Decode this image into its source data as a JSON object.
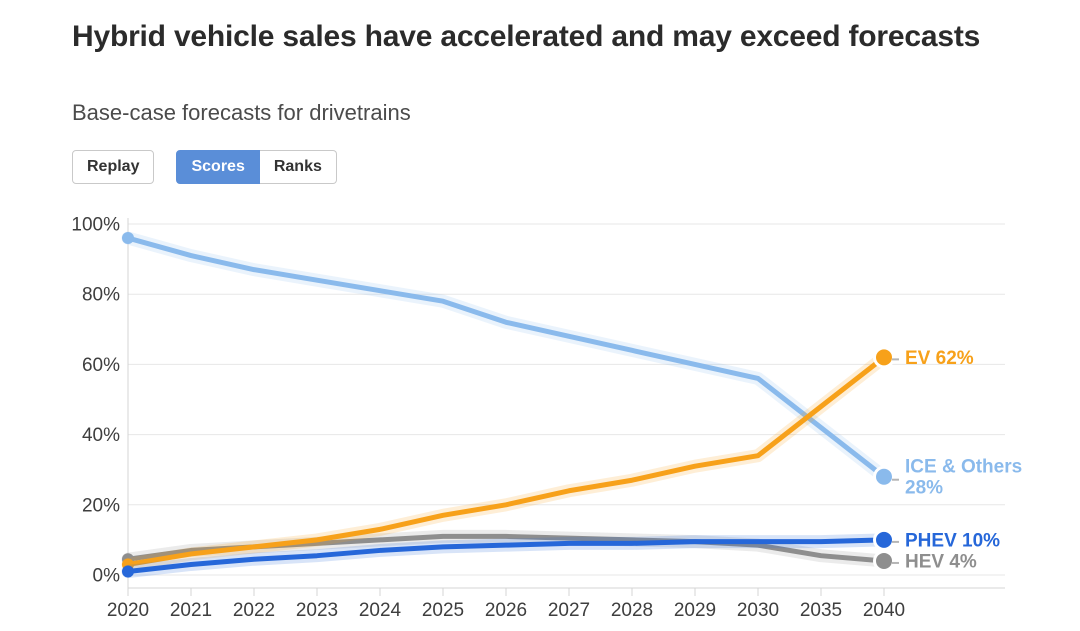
{
  "header": {
    "title": "Hybrid vehicle sales have accelerated and may exceed forecasts",
    "subtitle": "Base-case forecasts for drivetrains"
  },
  "controls": {
    "replay_label": "Replay",
    "scores_label": "Scores",
    "ranks_label": "Ranks",
    "selected_view": "Scores",
    "selected_color": "#5a8ed8"
  },
  "chart_data": {
    "type": "line",
    "title": "Base-case forecasts for drivetrains",
    "categories": [
      "2020",
      "2021",
      "2022",
      "2023",
      "2024",
      "2025",
      "2026",
      "2027",
      "2028",
      "2029",
      "2030",
      "2035",
      "2040"
    ],
    "xlabel": "",
    "ylabel": "",
    "ylim": [
      0,
      100
    ],
    "yticks": [
      0,
      20,
      40,
      60,
      80,
      100
    ],
    "ytick_suffix": "%",
    "grid": true,
    "legend_position": "right-end-labels",
    "series": [
      {
        "name": "ICE & Others",
        "color": "#8abaec",
        "values": [
          96,
          91,
          87,
          84,
          81,
          78,
          72,
          68,
          64,
          60,
          56,
          42,
          28
        ],
        "end_value": 28,
        "end_label_lines": [
          "ICE & Others",
          "28%"
        ]
      },
      {
        "name": "HEV",
        "color": "#8e8e8e",
        "values": [
          4.5,
          7,
          8,
          9,
          10,
          11,
          11,
          10.5,
          10,
          9.5,
          8.5,
          5.5,
          4
        ],
        "end_value": 4,
        "end_label_lines": [
          "HEV 4%"
        ]
      },
      {
        "name": "EV",
        "color": "#f7a11a",
        "values": [
          3,
          6,
          8,
          10,
          13,
          17,
          20,
          24,
          27,
          31,
          34,
          48,
          62
        ],
        "end_value": 62,
        "end_label_lines": [
          "EV 62%"
        ]
      },
      {
        "name": "PHEV",
        "color": "#2667d9",
        "values": [
          1,
          3,
          4.5,
          5.5,
          7,
          8,
          8.5,
          9,
          9,
          9.5,
          9.5,
          9.5,
          10
        ],
        "end_value": 10,
        "end_label_lines": [
          "PHEV 10%"
        ]
      }
    ]
  }
}
